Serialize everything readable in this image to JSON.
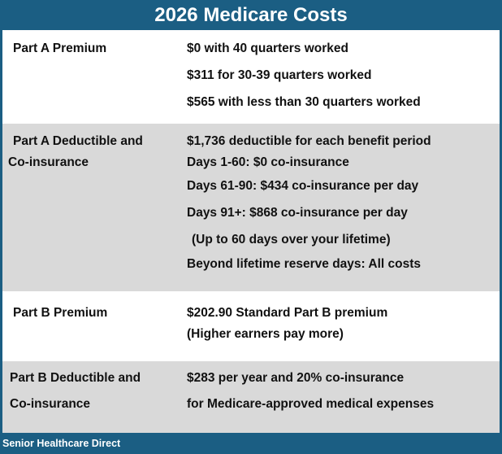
{
  "title": "2026 Medicare Costs",
  "rows": [
    {
      "label_lines": [
        "Part A Premium"
      ],
      "value_lines": [
        "$0 with 40 quarters worked",
        "$311 for 30-39 quarters worked",
        "$565 with less than 30 quarters worked"
      ]
    },
    {
      "label_lines": [
        "Part A Deductible and",
        "Co-insurance"
      ],
      "value_lines": [
        "$1,736 deductible for each benefit period",
        "Days 1-60: $0 co-insurance",
        "Days 61-90: $434 co-insurance per day",
        "Days 91+: $868 co-insurance per day",
        "(Up to 60 days over your lifetime)",
        "Beyond lifetime reserve days: All costs"
      ]
    },
    {
      "label_lines": [
        "Part B Premium"
      ],
      "value_lines": [
        "$202.90 Standard Part B premium",
        "(Higher earners pay more)"
      ]
    },
    {
      "label_lines": [
        "Part B Deductible and",
        "Co-insurance"
      ],
      "value_lines": [
        "$283 per year and 20% co-insurance",
        "for Medicare-approved medical expenses"
      ]
    }
  ],
  "footer": "Senior Healthcare Direct",
  "colors": {
    "header_bg": "#1b5e83",
    "row_white": "#ffffff",
    "row_gray": "#d9d9d9",
    "text": "#111111"
  }
}
